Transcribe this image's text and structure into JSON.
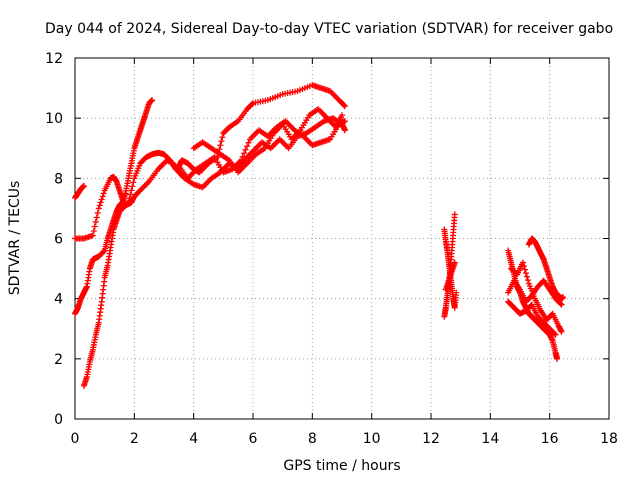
{
  "chart_data": {
    "type": "scatter",
    "title": "Day 044 of 2024, Sidereal Day-to-day VTEC variation (SDTVAR) for receiver gabo",
    "xlabel": "GPS time / hours",
    "ylabel": "SDTVAR / TECUs",
    "xlim": [
      0,
      18
    ],
    "ylim": [
      0,
      12
    ],
    "xticks": [
      "0",
      "2",
      "4",
      "6",
      "8",
      "10",
      "12",
      "14",
      "16",
      "18"
    ],
    "yticks": [
      "0",
      "2",
      "4",
      "6",
      "8",
      "10",
      "12"
    ],
    "grid": true,
    "marker": "+",
    "color": "#ff0000",
    "series": [
      {
        "name": "trace-1",
        "x": [
          0.0,
          0.1,
          0.2,
          0.3
        ],
        "y": [
          7.35,
          7.5,
          7.65,
          7.75
        ]
      },
      {
        "name": "trace-2",
        "x": [
          0.0,
          0.3,
          0.6,
          0.8,
          1.0,
          1.2,
          1.3,
          1.4,
          1.5,
          1.6,
          1.7,
          1.8,
          2.0,
          2.2,
          2.4,
          2.6,
          2.8,
          3.0,
          3.2,
          3.4,
          3.5,
          3.6,
          3.8,
          4.0,
          4.2,
          4.5,
          4.8,
          5.0,
          5.2,
          5.5,
          5.8,
          6.0,
          6.5,
          7.0,
          7.5,
          8.0,
          8.3,
          8.6,
          8.9,
          9.1
        ],
        "y": [
          6.0,
          6.0,
          6.1,
          7.0,
          7.6,
          8.0,
          8.05,
          7.9,
          7.6,
          7.3,
          7.1,
          7.2,
          8.0,
          8.5,
          8.7,
          8.8,
          8.85,
          8.8,
          8.6,
          8.3,
          8.4,
          8.6,
          8.5,
          8.3,
          8.2,
          8.5,
          8.7,
          9.5,
          9.7,
          9.9,
          10.3,
          10.5,
          10.6,
          10.8,
          10.9,
          11.1,
          11.0,
          10.9,
          10.6,
          10.4
        ]
      },
      {
        "name": "trace-3",
        "x": [
          0.0,
          0.1,
          0.2,
          0.3,
          0.4,
          0.5,
          0.6,
          0.7,
          0.8,
          1.0,
          1.1,
          1.2,
          1.3,
          1.4,
          1.5,
          1.6,
          1.7,
          1.8,
          1.9,
          2.0,
          2.1,
          2.2,
          2.3,
          2.4,
          2.5,
          2.6
        ],
        "y": [
          3.5,
          3.7,
          4.0,
          4.2,
          4.4,
          5.0,
          5.3,
          5.35,
          5.4,
          5.6,
          6.0,
          6.3,
          6.6,
          6.9,
          7.1,
          7.2,
          7.5,
          8.0,
          8.5,
          9.0,
          9.3,
          9.6,
          9.9,
          10.2,
          10.5,
          10.6
        ]
      },
      {
        "name": "trace-4",
        "x": [
          0.3,
          0.4,
          0.5,
          0.6,
          0.7,
          0.8,
          0.9,
          1.0,
          1.1,
          1.2,
          1.3,
          1.4,
          1.5,
          1.6,
          1.7,
          1.8,
          1.9,
          2.0,
          2.2,
          2.5,
          2.8,
          3.1,
          3.3,
          3.5,
          3.7,
          4.0,
          4.3,
          4.6,
          4.9,
          5.2,
          5.5,
          5.7,
          6.0,
          6.3,
          6.6,
          6.9,
          7.2,
          7.5,
          7.8,
          8.1,
          8.4,
          8.7,
          9.0,
          9.1
        ],
        "y": [
          1.1,
          1.4,
          1.9,
          2.3,
          2.8,
          3.2,
          3.9,
          4.7,
          5.1,
          5.7,
          6.3,
          6.6,
          6.9,
          7.0,
          7.1,
          7.15,
          7.2,
          7.4,
          7.6,
          7.9,
          8.3,
          8.6,
          8.5,
          8.2,
          8.0,
          7.8,
          7.7,
          8.0,
          8.2,
          8.5,
          8.3,
          8.6,
          8.9,
          9.2,
          9.0,
          9.3,
          9.0,
          9.4,
          9.5,
          9.7,
          9.9,
          10.0,
          9.8,
          9.6
        ]
      },
      {
        "name": "trace-5",
        "x": [
          3.5,
          3.8,
          4.1,
          4.4,
          4.7,
          5.0,
          5.3,
          5.6,
          5.9,
          6.2,
          6.5,
          6.8,
          7.1,
          7.4,
          7.7,
          8.0,
          8.3,
          8.6,
          8.9,
          9.1
        ],
        "y": [
          8.4,
          8.0,
          8.3,
          8.5,
          8.7,
          8.2,
          8.3,
          8.6,
          9.3,
          9.6,
          9.4,
          9.7,
          9.9,
          9.6,
          9.4,
          9.1,
          9.2,
          9.3,
          9.8,
          9.9
        ]
      },
      {
        "name": "trace-6",
        "x": [
          4.0,
          4.3,
          4.6,
          4.9,
          5.2,
          5.5,
          5.8,
          6.1,
          6.4,
          6.7,
          7.0,
          7.3,
          7.6,
          7.9,
          8.2,
          8.5,
          8.8,
          9.0
        ],
        "y": [
          9.0,
          9.2,
          9.0,
          8.8,
          8.6,
          8.2,
          8.5,
          8.8,
          9.0,
          9.5,
          9.8,
          9.3,
          9.6,
          10.1,
          10.3,
          10.0,
          9.7,
          10.1
        ]
      },
      {
        "name": "trace-7",
        "x": [
          12.45,
          12.5,
          12.55,
          12.6,
          12.65,
          12.7,
          12.75,
          12.8,
          12.85
        ],
        "y": [
          6.3,
          5.9,
          5.6,
          5.2,
          4.8,
          4.4,
          4.0,
          3.7,
          4.2
        ]
      },
      {
        "name": "trace-8",
        "x": [
          12.45,
          12.5,
          12.55,
          12.6,
          12.65,
          12.7,
          12.75,
          12.8
        ],
        "y": [
          3.4,
          3.7,
          4.1,
          4.5,
          5.0,
          5.6,
          6.2,
          6.8
        ]
      },
      {
        "name": "trace-9",
        "x": [
          12.5,
          12.6,
          12.7,
          12.8
        ],
        "y": [
          4.3,
          4.6,
          4.9,
          5.2
        ]
      },
      {
        "name": "trace-10",
        "x": [
          14.6,
          14.7,
          14.8,
          14.9,
          15.0,
          15.1,
          15.2,
          15.3,
          15.4,
          15.5,
          15.6,
          15.7,
          15.8,
          15.9,
          16.0,
          16.1,
          16.2,
          16.25
        ],
        "y": [
          5.6,
          5.2,
          4.8,
          4.4,
          4.2,
          3.9,
          3.7,
          3.5,
          3.4,
          3.3,
          3.2,
          3.1,
          3.0,
          2.9,
          2.8,
          2.6,
          2.2,
          2.0
        ]
      },
      {
        "name": "trace-11",
        "x": [
          15.3,
          15.4,
          15.5,
          15.6,
          15.7,
          15.8,
          15.9,
          16.0,
          16.1,
          16.2,
          16.3,
          16.4,
          16.45
        ],
        "y": [
          5.8,
          6.0,
          5.9,
          5.7,
          5.5,
          5.3,
          5.0,
          4.7,
          4.4,
          4.2,
          4.1,
          4.0,
          4.05
        ]
      },
      {
        "name": "trace-12",
        "x": [
          14.6,
          14.8,
          15.0,
          15.2,
          15.4,
          15.6,
          15.8,
          16.0,
          16.2,
          16.4
        ],
        "y": [
          4.2,
          4.6,
          4.3,
          3.9,
          4.1,
          4.4,
          4.6,
          4.3,
          4.0,
          3.8
        ]
      },
      {
        "name": "trace-13",
        "x": [
          14.7,
          14.9,
          15.1,
          15.3,
          15.5,
          15.7,
          15.9,
          16.1,
          16.3,
          16.4
        ],
        "y": [
          5.0,
          4.8,
          5.2,
          4.5,
          4.0,
          3.6,
          3.3,
          3.5,
          3.1,
          2.9
        ]
      },
      {
        "name": "trace-14",
        "x": [
          14.6,
          14.8,
          15.0,
          15.2,
          15.4,
          15.6,
          15.8,
          16.0,
          16.2
        ],
        "y": [
          3.9,
          3.7,
          3.5,
          3.6,
          3.8,
          3.4,
          3.2,
          3.0,
          2.8
        ]
      }
    ]
  }
}
